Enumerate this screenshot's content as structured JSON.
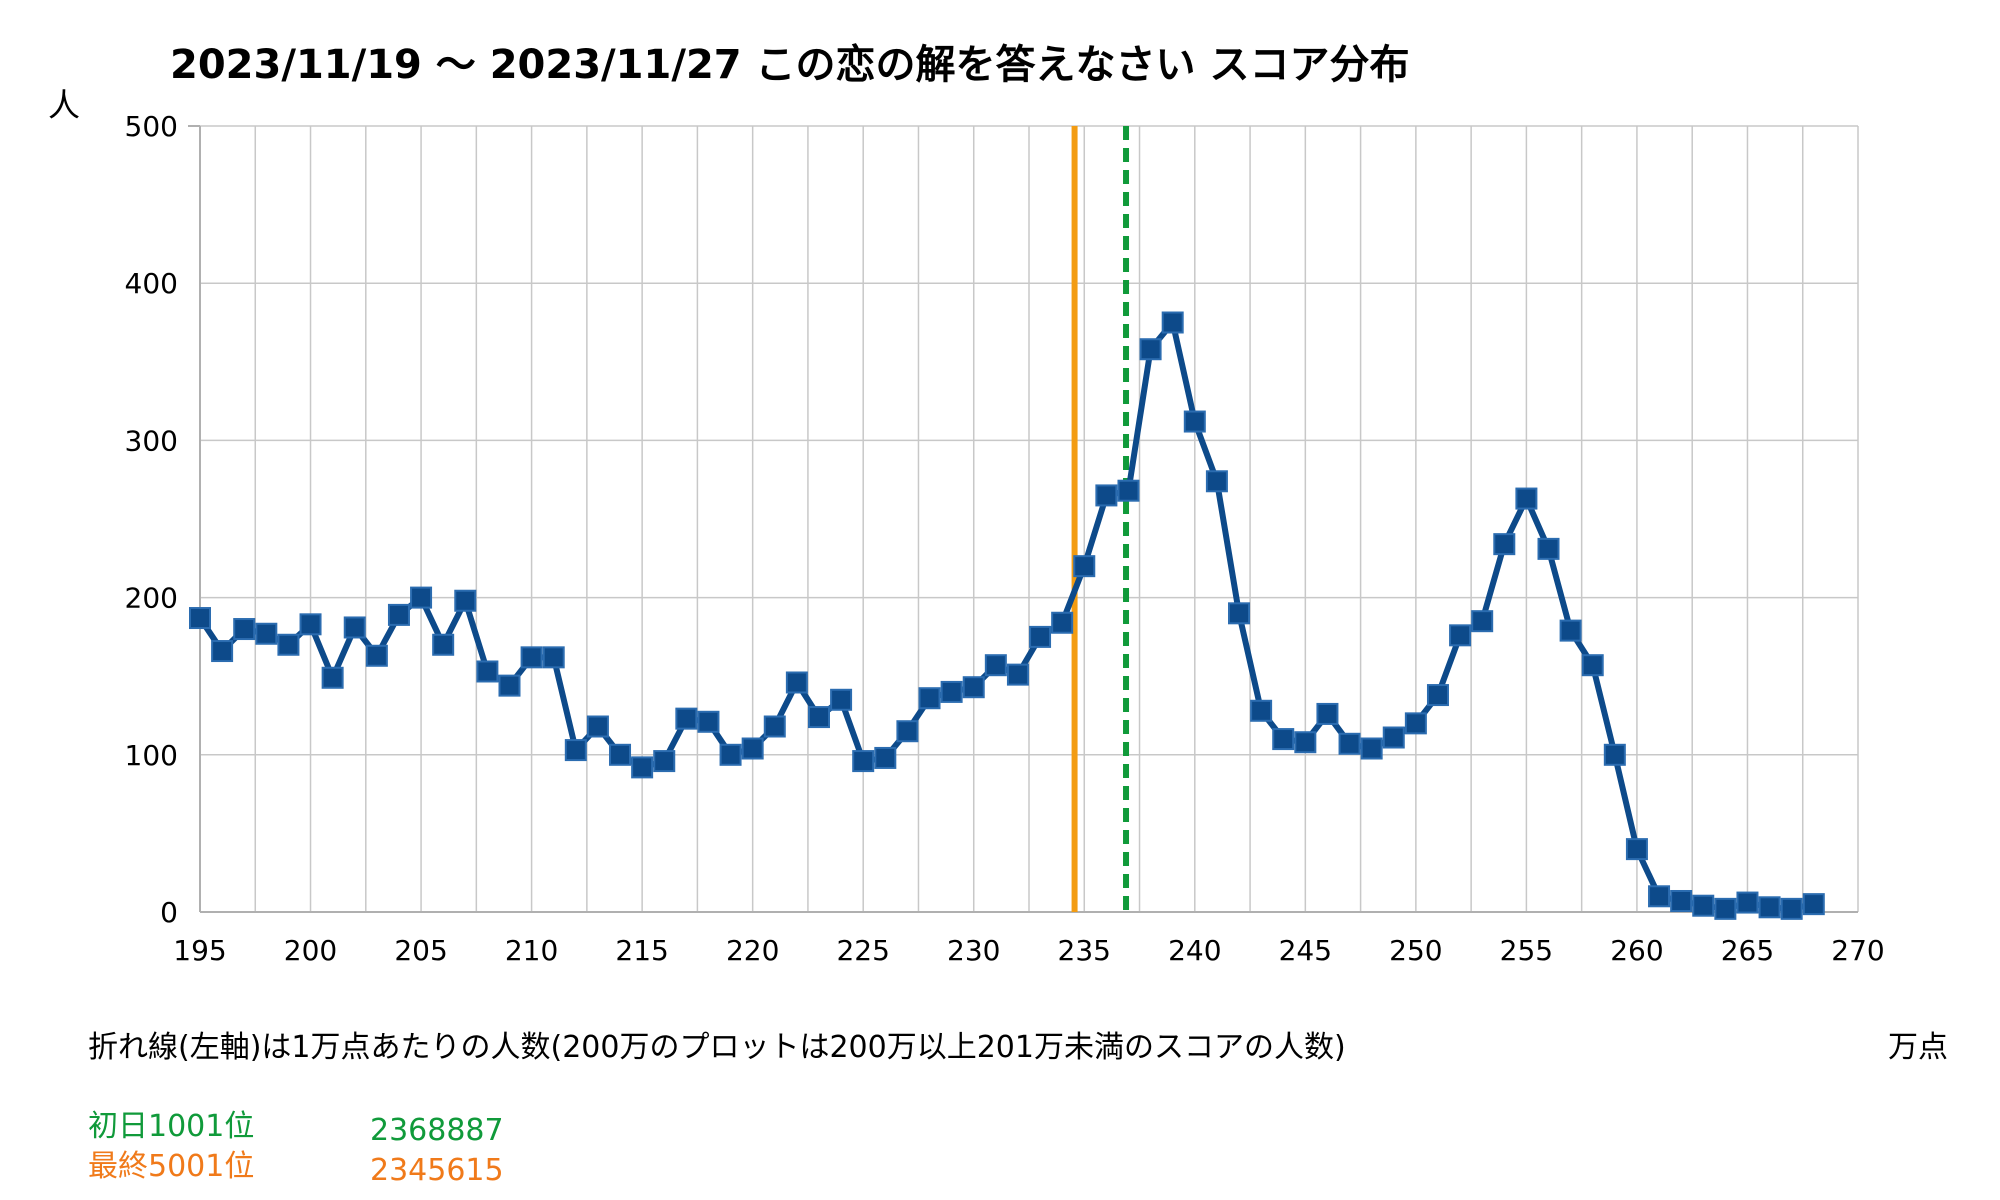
{
  "chart_data": {
    "type": "line",
    "title": "2023/11/19 〜 2023/11/27 この恋の解を答えなさい スコア分布",
    "ylabel": "人",
    "xlabel": "万点",
    "xlim": [
      195,
      270
    ],
    "ylim": [
      0,
      500
    ],
    "x_ticks": [
      195,
      200,
      205,
      210,
      215,
      220,
      225,
      230,
      235,
      240,
      245,
      250,
      255,
      260,
      265,
      270
    ],
    "y_ticks": [
      0,
      100,
      200,
      300,
      400,
      500
    ],
    "grid": true,
    "colors": {
      "series": "#0d4a8a",
      "first_day_line": "#109a3a",
      "final_line": "#f39c12",
      "first_day_text": "#109a3a",
      "final_text": "#f07a1a",
      "grid": "#c8c8c8"
    },
    "series": [
      {
        "name": "",
        "x": [
          195,
          196,
          197,
          198,
          199,
          200,
          201,
          202,
          203,
          204,
          205,
          206,
          207,
          208,
          209,
          210,
          211,
          212,
          213,
          214,
          215,
          216,
          217,
          218,
          219,
          220,
          221,
          222,
          223,
          224,
          225,
          226,
          227,
          228,
          229,
          230,
          231,
          232,
          233,
          234,
          235,
          236,
          237,
          238,
          239,
          240,
          241,
          242,
          243,
          244,
          245,
          246,
          247,
          248,
          249,
          250,
          251,
          252,
          253,
          254,
          255,
          256,
          257,
          258,
          259,
          260,
          261,
          262,
          263,
          264,
          265,
          266,
          267,
          268
        ],
        "values": [
          187,
          166,
          180,
          177,
          170,
          183,
          149,
          181,
          163,
          189,
          200,
          170,
          198,
          153,
          144,
          162,
          162,
          103,
          118,
          100,
          92,
          96,
          123,
          121,
          100,
          104,
          118,
          146,
          124,
          135,
          96,
          98,
          115,
          136,
          140,
          143,
          157,
          151,
          175,
          184,
          220,
          265,
          268,
          358,
          375,
          312,
          274,
          190,
          128,
          110,
          108,
          126,
          107,
          104,
          111,
          120,
          138,
          176,
          185,
          234,
          263,
          231,
          179,
          157,
          100,
          40,
          10,
          7,
          4,
          2,
          6,
          3,
          2,
          5
        ]
      }
    ],
    "annotations": {
      "note": "折れ線(左軸)は1万点あたりの人数(200万のプロットは200万以上201万未満のスコアの人数)",
      "first_day": {
        "label": "初日1001位",
        "value": "2368887",
        "x": 236.8887
      },
      "final": {
        "label": "最終5001位",
        "value": "2345615",
        "x": 234.5615
      }
    }
  }
}
